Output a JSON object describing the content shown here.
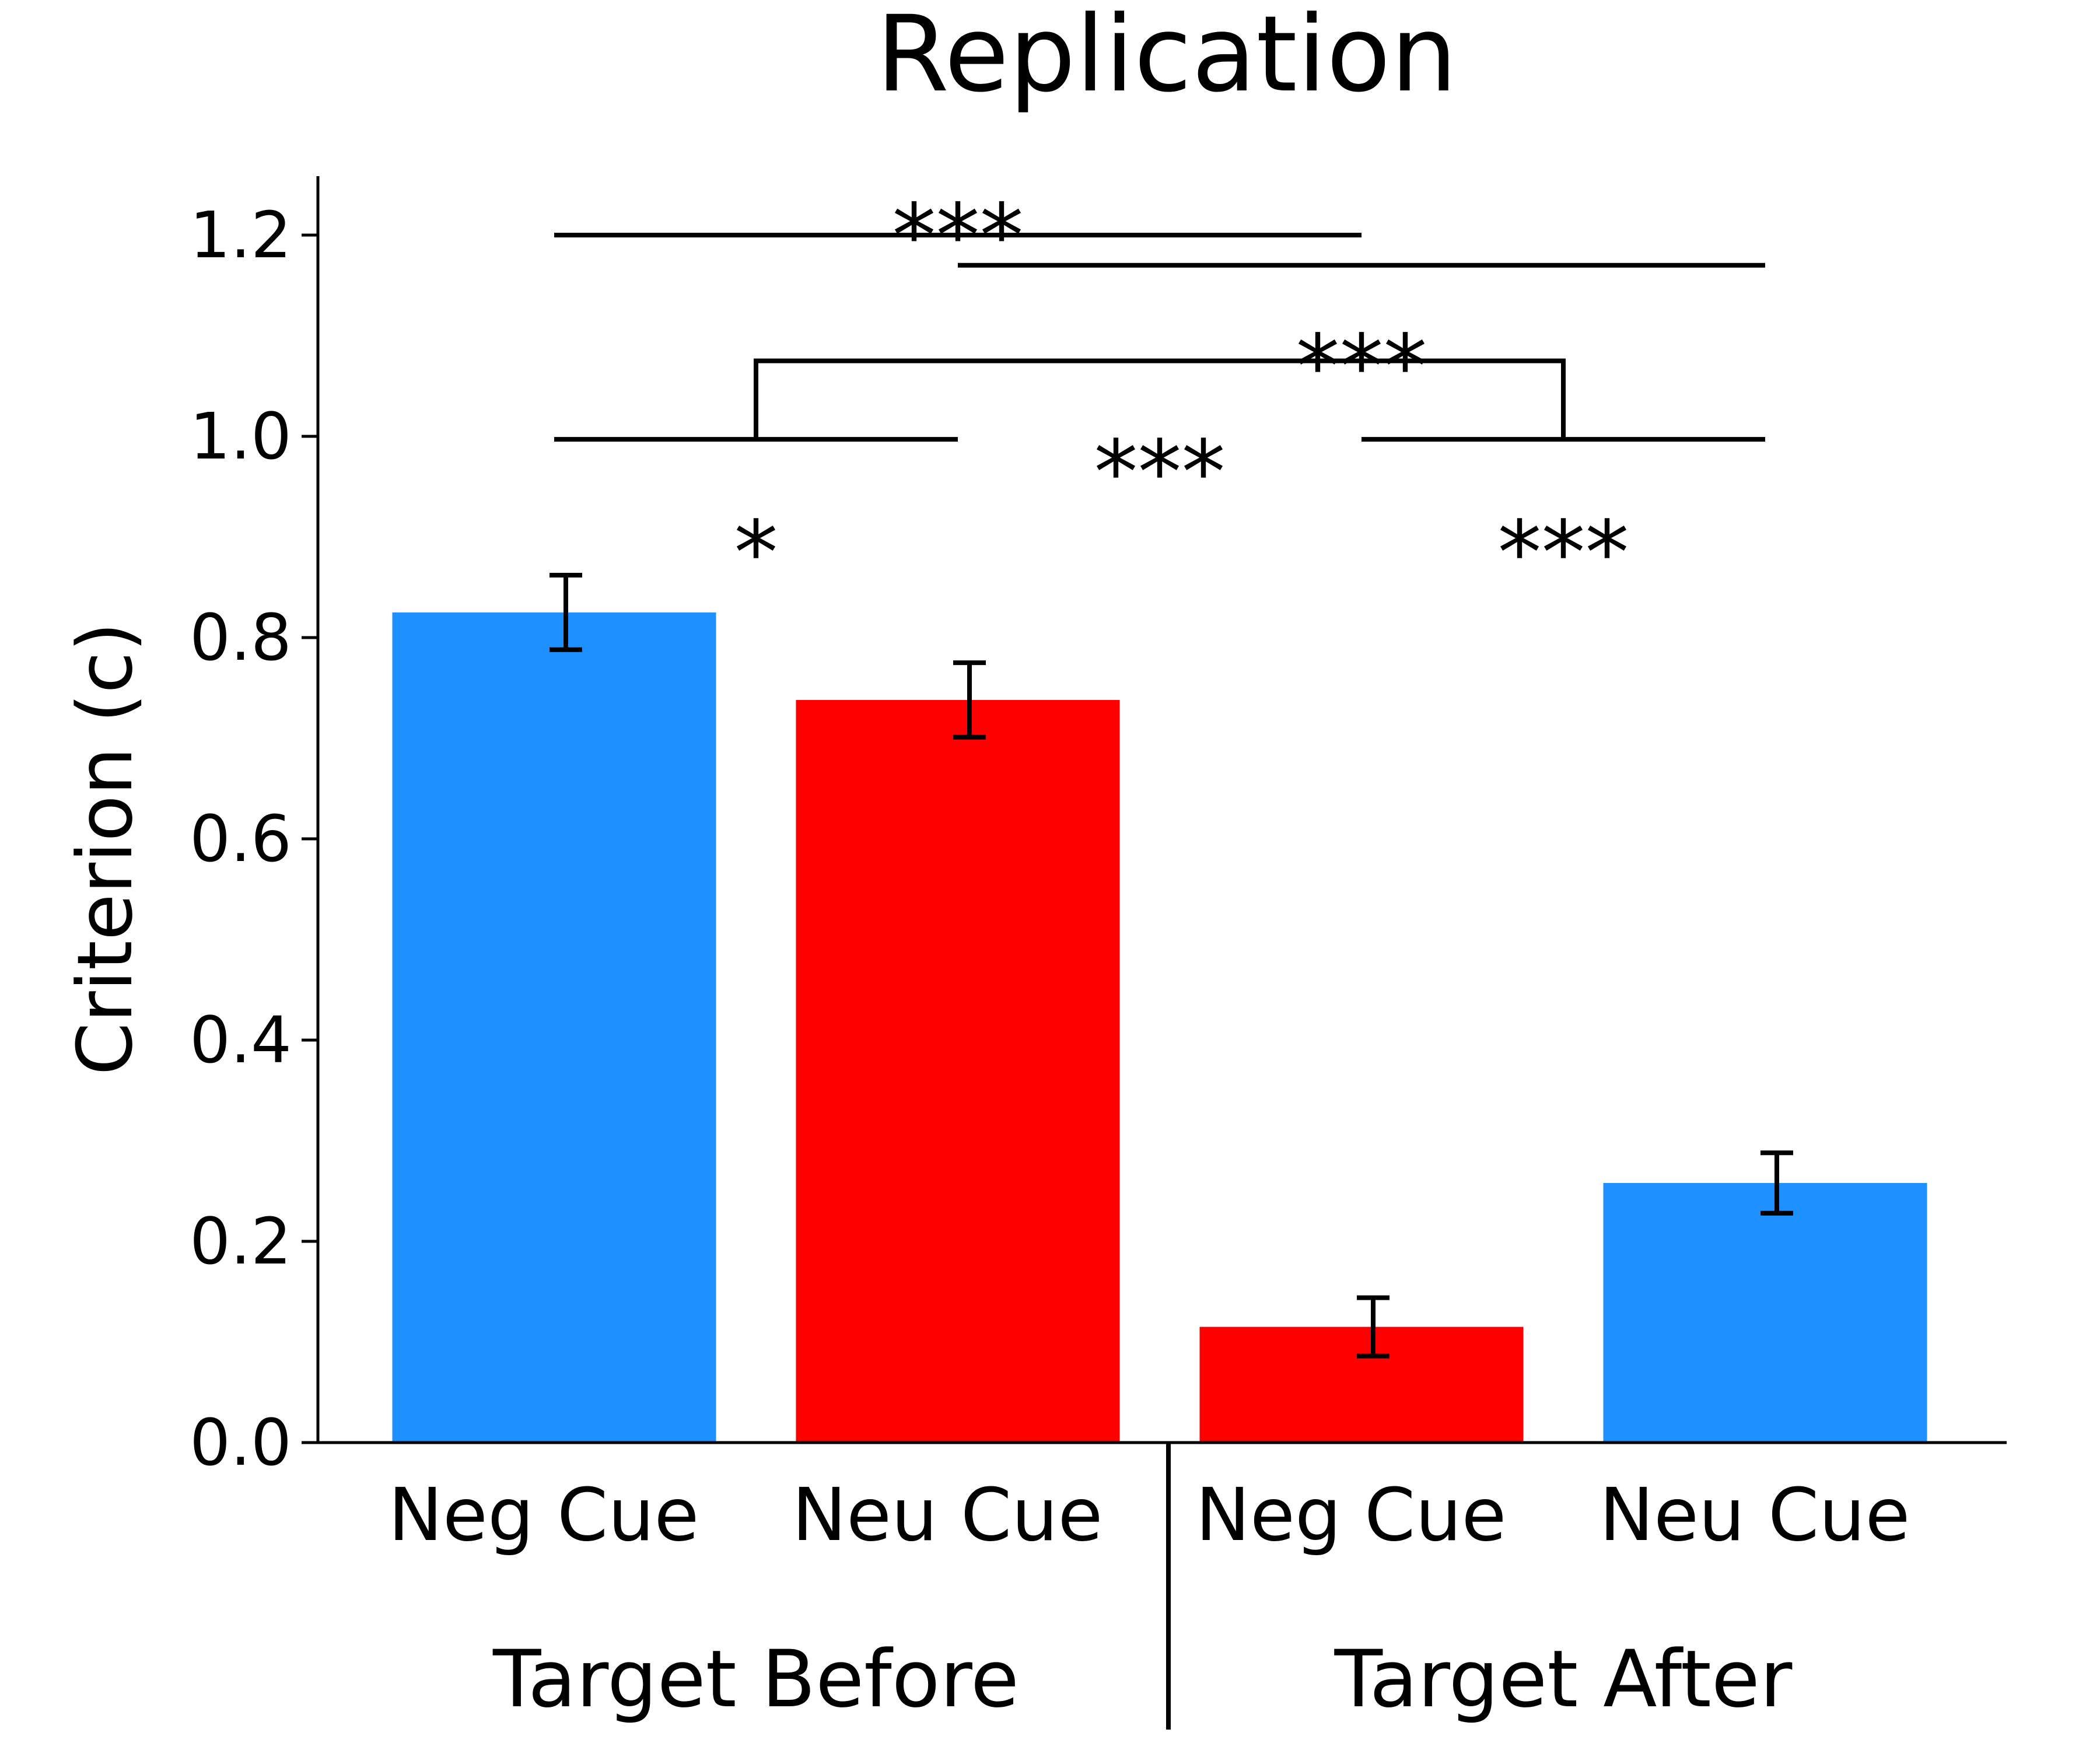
{
  "chart_data": {
    "type": "bar",
    "title": "Replication",
    "xlabel": "",
    "ylabel": "Criterion (c)",
    "ylim": [
      0,
      1.26
    ],
    "yticks": [
      "0.0",
      "0.2",
      "0.4",
      "0.6",
      "0.8",
      "1.0",
      "1.2"
    ],
    "ytick_values": [
      0.0,
      0.2,
      0.4,
      0.6,
      0.8,
      1.0,
      1.2
    ],
    "grid": false,
    "categories": [
      "Neg Cue",
      "Neu Cue",
      "Neg Cue",
      "Neu Cue"
    ],
    "groups": [
      {
        "label": "Target Before",
        "categories": [
          0,
          1
        ]
      },
      {
        "label": "Target After",
        "categories": [
          2,
          3
        ]
      }
    ],
    "values": [
      0.825,
      0.738,
      0.115,
      0.258
    ],
    "errors": [
      0.037,
      0.037,
      0.029,
      0.03
    ],
    "bar_colors": [
      "#1E90FF",
      "#FF0000",
      "#FF0000",
      "#1E90FF"
    ],
    "significance": [
      {
        "type": "line",
        "from": 0,
        "to": 2,
        "y": 1.2,
        "label": "***",
        "label_x": 1,
        "label_y": 1.23
      },
      {
        "type": "line",
        "from": 1,
        "to": 3,
        "y": 1.17,
        "label": "***",
        "label_x": 2,
        "label_y": 1.1
      },
      {
        "type": "bracket",
        "from": 0.5,
        "to": 2.5,
        "y": 1.075,
        "base": 0.997,
        "label": "***",
        "label_x": 1.5,
        "label_y": 0.995
      },
      {
        "type": "line",
        "from": 0,
        "to": 1,
        "y": 0.997,
        "label": "*",
        "label_x": 0.5,
        "label_y": 0.915
      },
      {
        "type": "line",
        "from": 2,
        "to": 3,
        "y": 0.997,
        "label": "***",
        "label_x": 2.5,
        "label_y": 0.915
      }
    ]
  }
}
